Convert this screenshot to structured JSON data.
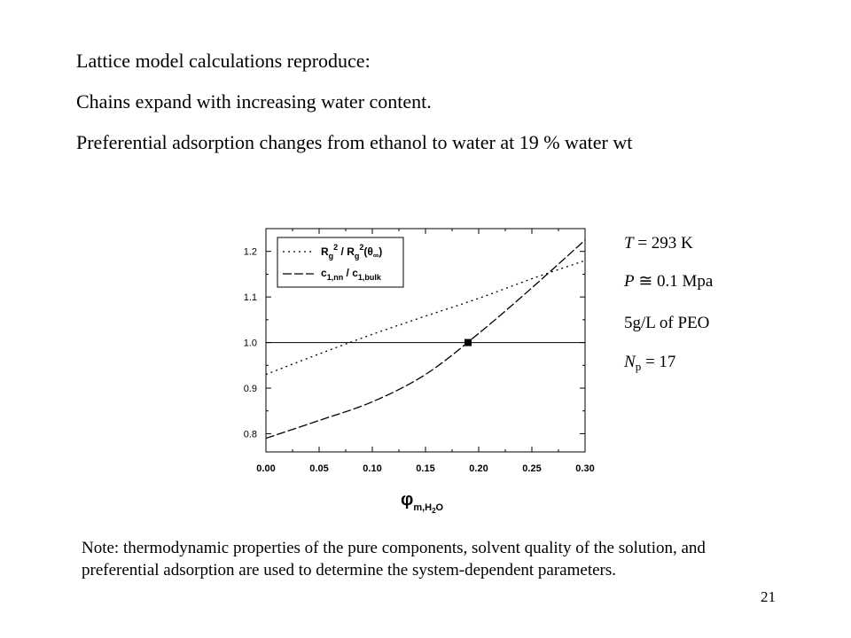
{
  "bullets": [
    "Lattice model calculations reproduce:",
    "Chains expand with increasing water content.",
    "Preferential adsorption changes from ethanol to water at 19 % water wt"
  ],
  "conditions": {
    "T": {
      "sym": "T",
      "rest": " = 293 K"
    },
    "P": {
      "sym": "P",
      "rest": " ≅ 0.1 Mpa"
    },
    "conc": "5g/L of PEO",
    "Np": {
      "sym": "N",
      "sub": "p",
      "rest": " = 17"
    }
  },
  "note": "Note: thermodynamic properties of the pure components, solvent quality of the solution, and preferential adsorption are used to determine the system-dependent parameters.",
  "page_number": "21",
  "chart_data": {
    "type": "line",
    "xlabel": {
      "main": "φ",
      "sub": "m,H",
      "sub2": "2",
      "sub3": "O"
    },
    "xlim": [
      0.0,
      0.3
    ],
    "ylim": [
      0.76,
      1.25
    ],
    "xticks": [
      "0.00",
      "0.05",
      "0.10",
      "0.15",
      "0.20",
      "0.25",
      "0.30"
    ],
    "yticks": [
      "0.8",
      "0.9",
      "1.0",
      "1.1",
      "1.2"
    ],
    "ytick_values": [
      0.8,
      0.9,
      1.0,
      1.1,
      1.2
    ],
    "reference_line": 1.0,
    "crossing_point": {
      "x": 0.19,
      "y": 1.0
    },
    "legend_position": "top-left",
    "series": [
      {
        "name": "Rg² / Rg²(θ∞)",
        "style": "dotted",
        "x": [
          0.0,
          0.05,
          0.1,
          0.15,
          0.2,
          0.25,
          0.3
        ],
        "y": [
          0.93,
          0.975,
          1.018,
          1.058,
          1.097,
          1.14,
          1.18
        ]
      },
      {
        "name": "c1,nn / c1,bulk",
        "style": "dashed",
        "x": [
          0.0,
          0.05,
          0.1,
          0.15,
          0.2,
          0.25,
          0.3
        ],
        "y": [
          0.79,
          0.829,
          0.87,
          0.93,
          1.02,
          1.12,
          1.225
        ]
      }
    ]
  }
}
